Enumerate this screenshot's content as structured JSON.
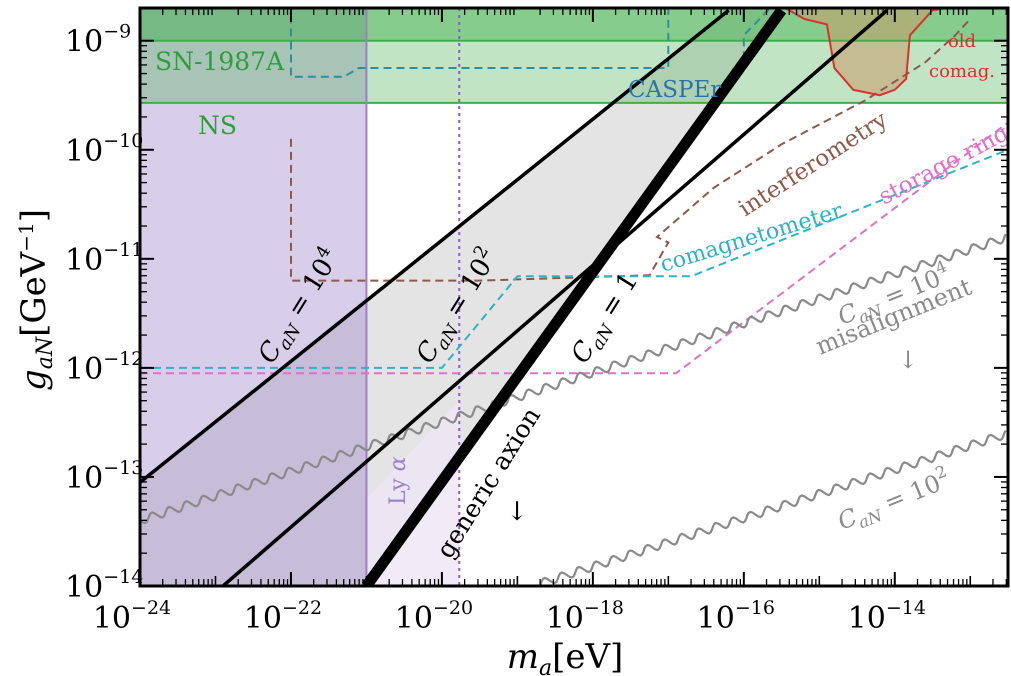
{
  "chart_data": {
    "type": "line",
    "title": "",
    "xlabel": {
      "main": "m",
      "sub": "a",
      "unit": "[eV]"
    },
    "ylabel": {
      "main": "g",
      "sub": "aN",
      "unit_pre": "[GeV",
      "unit_exp": "−1",
      "unit_post": "]"
    },
    "x_scale": "log",
    "y_scale": "log",
    "xlim_log10": [
      -24,
      -12.5
    ],
    "ylim_log10": [
      -14,
      -8.7
    ],
    "x_ticks": [
      {
        "base": "10",
        "exp": "−24",
        "log10": -24
      },
      {
        "base": "10",
        "exp": "−22",
        "log10": -22
      },
      {
        "base": "10",
        "exp": "−20",
        "log10": -20
      },
      {
        "base": "10",
        "exp": "−18",
        "log10": -18
      },
      {
        "base": "10",
        "exp": "−16",
        "log10": -16
      },
      {
        "base": "10",
        "exp": "−14",
        "log10": -14
      }
    ],
    "y_ticks": [
      {
        "base": "10",
        "exp": "−9",
        "log10": -9
      },
      {
        "base": "10",
        "exp": "−10",
        "log10": -10
      },
      {
        "base": "10",
        "exp": "−11",
        "log10": -11
      },
      {
        "base": "10",
        "exp": "−12",
        "log10": -12
      },
      {
        "base": "10",
        "exp": "−13",
        "log10": -13
      },
      {
        "base": "10",
        "exp": "−14",
        "log10": -14
      }
    ],
    "colors": {
      "sn": "#3fae49",
      "lya": "#9b7fc8",
      "casper": "#2d8f9e",
      "interferometry": "#8b5a4a",
      "comag": "#2bb3c7",
      "storage": "#e070c8",
      "oldcomag": "#d93030",
      "misalign": "#8a8a8a",
      "generic_fill": "#e4e4e4"
    },
    "regions": [
      {
        "name": "SN-1987A",
        "label": "SN-1987A",
        "y_log10": -9.0
      },
      {
        "name": "NS",
        "label": "NS",
        "y_log10": -9.57
      },
      {
        "name": "Lyα",
        "label_main": "Ly",
        "label_greek": "α",
        "x_log10": -21.0
      }
    ],
    "series": [
      {
        "name": "CASPEr",
        "label": "CASPEr",
        "style": "dashed",
        "points": [
          [
            -22.0,
            -8.65
          ],
          [
            -22.0,
            -9.33
          ],
          [
            -21.3,
            -9.33
          ],
          [
            -21.1,
            -9.25
          ],
          [
            -17.0,
            -9.25
          ],
          [
            -17.0,
            -8.7
          ]
        ]
      },
      {
        "name": "CASPEr-2",
        "style": "dashed",
        "points": [
          [
            -16.0,
            -9.17
          ],
          [
            -16.0,
            -8.95
          ],
          [
            -15.65,
            -8.7
          ]
        ]
      },
      {
        "name": "interferometry",
        "label": "interferometry",
        "style": "dashed",
        "points": [
          [
            -22.0,
            -9.9
          ],
          [
            -22.0,
            -11.2
          ],
          [
            -19.5,
            -11.2
          ],
          [
            -17.25,
            -11.15
          ],
          [
            -17.0,
            -10.85
          ],
          [
            -17.15,
            -10.8
          ],
          [
            -16.4,
            -10.35
          ],
          [
            -15.5,
            -9.95
          ],
          [
            -14.4,
            -9.55
          ],
          [
            -13.6,
            -9.2
          ],
          [
            -13.2,
            -8.95
          ],
          [
            -13.0,
            -8.8
          ]
        ]
      },
      {
        "name": "comagnetometer",
        "label": "comagnetometer",
        "style": "dashed",
        "points": [
          [
            -24.0,
            -12.0
          ],
          [
            -20.0,
            -12.0
          ],
          [
            -19.0,
            -11.16
          ],
          [
            -16.7,
            -11.16
          ],
          [
            -12.5,
            -10.0
          ]
        ]
      },
      {
        "name": "storage ring",
        "label": "storage ring",
        "style": "dashed",
        "points": [
          [
            -24.0,
            -12.05
          ],
          [
            -16.9,
            -12.05
          ],
          [
            -12.5,
            -9.75
          ]
        ]
      },
      {
        "name": "old comag.",
        "label_line1": "old",
        "label_line2": "comag.",
        "style": "solid",
        "points": [
          [
            -15.45,
            -8.7
          ],
          [
            -15.2,
            -8.8
          ],
          [
            -14.9,
            -8.85
          ],
          [
            -14.8,
            -9.25
          ],
          [
            -14.55,
            -9.45
          ],
          [
            -14.2,
            -9.5
          ],
          [
            -14.0,
            -9.45
          ],
          [
            -13.85,
            -9.35
          ],
          [
            -13.8,
            -8.95
          ],
          [
            -13.5,
            -8.72
          ],
          [
            -13.3,
            -8.7
          ]
        ]
      }
    ],
    "lines": [
      {
        "name": "C_aN = 10^4",
        "label_main": "C",
        "label_sub": "aN",
        "label_rest": " = 10",
        "label_exp": "4",
        "points": [
          [
            -24.0,
            -13.05
          ],
          [
            -16.2,
            -8.72
          ]
        ]
      },
      {
        "name": "C_aN = 10^2",
        "label_main": "C",
        "label_sub": "aN",
        "label_rest": " = 10",
        "label_exp": "2",
        "points": [
          [
            -22.9,
            -14.0
          ],
          [
            -14.1,
            -8.72
          ]
        ]
      },
      {
        "name": "C_aN = 1",
        "label_main": "C",
        "label_sub": "aN",
        "label_rest": " = 1",
        "points": [
          [
            -21.0,
            -14.0
          ],
          [
            -15.5,
            -8.72
          ]
        ]
      }
    ],
    "misalignment": [
      {
        "name": "misalignment C_aN = 10^4",
        "label_main": "C",
        "label_sub": "aN",
        "label_rest": " = 10",
        "label_exp": "4",
        "points": [
          [
            -24.0,
            -13.4
          ],
          [
            -12.5,
            -10.8
          ]
        ]
      },
      {
        "name": "misalignment C_aN = 10^2",
        "label_main": "C",
        "label_sub": "aN",
        "label_rest": " = 10",
        "label_exp": "2",
        "points": [
          [
            -18.8,
            -14.0
          ],
          [
            -12.5,
            -12.6
          ]
        ]
      }
    ],
    "annotations": {
      "misalignment": "misalignment",
      "generic_axion": "generic axion",
      "arrow": "↓"
    }
  }
}
